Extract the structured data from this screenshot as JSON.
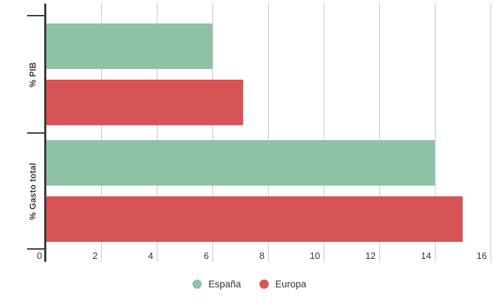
{
  "chart_data": {
    "type": "bar",
    "orientation": "horizontal",
    "title": "",
    "xlabel": "",
    "ylabel": "",
    "categories": [
      "% PIB",
      "% Gasto total"
    ],
    "series": [
      {
        "name": "España",
        "color": "#8DC3A4",
        "values": [
          6.0,
          14.0
        ]
      },
      {
        "name": "Europa",
        "color": "#D65356",
        "values": [
          7.1,
          15.0
        ]
      }
    ],
    "xlim": [
      0,
      16
    ],
    "xticks": [
      0,
      2,
      4,
      6,
      8,
      10,
      12,
      14,
      16
    ],
    "grid": true,
    "legend_position": "bottom"
  },
  "colors": {
    "axis": "#3b3b3b",
    "gridline": "#c9c9c9",
    "tick_text": "#333333"
  }
}
